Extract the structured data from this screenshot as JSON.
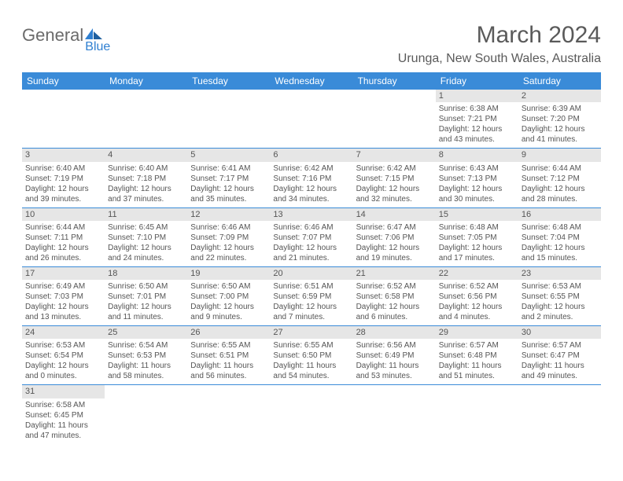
{
  "logo": {
    "text1": "General",
    "text2": "Blue"
  },
  "title": "March 2024",
  "location": "Urunga, New South Wales, Australia",
  "colors": {
    "headerBg": "#3a8bd8",
    "headerText": "#ffffff",
    "dayBarBg": "#e6e6e6",
    "borderColor": "#3a8bd8",
    "bodyText": "#555555",
    "titleText": "#5a5a5a"
  },
  "dayHeaders": [
    "Sunday",
    "Monday",
    "Tuesday",
    "Wednesday",
    "Thursday",
    "Friday",
    "Saturday"
  ],
  "weeks": [
    [
      null,
      null,
      null,
      null,
      null,
      {
        "n": "1",
        "sr": "Sunrise: 6:38 AM",
        "ss": "Sunset: 7:21 PM",
        "d1": "Daylight: 12 hours",
        "d2": "and 43 minutes."
      },
      {
        "n": "2",
        "sr": "Sunrise: 6:39 AM",
        "ss": "Sunset: 7:20 PM",
        "d1": "Daylight: 12 hours",
        "d2": "and 41 minutes."
      }
    ],
    [
      {
        "n": "3",
        "sr": "Sunrise: 6:40 AM",
        "ss": "Sunset: 7:19 PM",
        "d1": "Daylight: 12 hours",
        "d2": "and 39 minutes."
      },
      {
        "n": "4",
        "sr": "Sunrise: 6:40 AM",
        "ss": "Sunset: 7:18 PM",
        "d1": "Daylight: 12 hours",
        "d2": "and 37 minutes."
      },
      {
        "n": "5",
        "sr": "Sunrise: 6:41 AM",
        "ss": "Sunset: 7:17 PM",
        "d1": "Daylight: 12 hours",
        "d2": "and 35 minutes."
      },
      {
        "n": "6",
        "sr": "Sunrise: 6:42 AM",
        "ss": "Sunset: 7:16 PM",
        "d1": "Daylight: 12 hours",
        "d2": "and 34 minutes."
      },
      {
        "n": "7",
        "sr": "Sunrise: 6:42 AM",
        "ss": "Sunset: 7:15 PM",
        "d1": "Daylight: 12 hours",
        "d2": "and 32 minutes."
      },
      {
        "n": "8",
        "sr": "Sunrise: 6:43 AM",
        "ss": "Sunset: 7:13 PM",
        "d1": "Daylight: 12 hours",
        "d2": "and 30 minutes."
      },
      {
        "n": "9",
        "sr": "Sunrise: 6:44 AM",
        "ss": "Sunset: 7:12 PM",
        "d1": "Daylight: 12 hours",
        "d2": "and 28 minutes."
      }
    ],
    [
      {
        "n": "10",
        "sr": "Sunrise: 6:44 AM",
        "ss": "Sunset: 7:11 PM",
        "d1": "Daylight: 12 hours",
        "d2": "and 26 minutes."
      },
      {
        "n": "11",
        "sr": "Sunrise: 6:45 AM",
        "ss": "Sunset: 7:10 PM",
        "d1": "Daylight: 12 hours",
        "d2": "and 24 minutes."
      },
      {
        "n": "12",
        "sr": "Sunrise: 6:46 AM",
        "ss": "Sunset: 7:09 PM",
        "d1": "Daylight: 12 hours",
        "d2": "and 22 minutes."
      },
      {
        "n": "13",
        "sr": "Sunrise: 6:46 AM",
        "ss": "Sunset: 7:07 PM",
        "d1": "Daylight: 12 hours",
        "d2": "and 21 minutes."
      },
      {
        "n": "14",
        "sr": "Sunrise: 6:47 AM",
        "ss": "Sunset: 7:06 PM",
        "d1": "Daylight: 12 hours",
        "d2": "and 19 minutes."
      },
      {
        "n": "15",
        "sr": "Sunrise: 6:48 AM",
        "ss": "Sunset: 7:05 PM",
        "d1": "Daylight: 12 hours",
        "d2": "and 17 minutes."
      },
      {
        "n": "16",
        "sr": "Sunrise: 6:48 AM",
        "ss": "Sunset: 7:04 PM",
        "d1": "Daylight: 12 hours",
        "d2": "and 15 minutes."
      }
    ],
    [
      {
        "n": "17",
        "sr": "Sunrise: 6:49 AM",
        "ss": "Sunset: 7:03 PM",
        "d1": "Daylight: 12 hours",
        "d2": "and 13 minutes."
      },
      {
        "n": "18",
        "sr": "Sunrise: 6:50 AM",
        "ss": "Sunset: 7:01 PM",
        "d1": "Daylight: 12 hours",
        "d2": "and 11 minutes."
      },
      {
        "n": "19",
        "sr": "Sunrise: 6:50 AM",
        "ss": "Sunset: 7:00 PM",
        "d1": "Daylight: 12 hours",
        "d2": "and 9 minutes."
      },
      {
        "n": "20",
        "sr": "Sunrise: 6:51 AM",
        "ss": "Sunset: 6:59 PM",
        "d1": "Daylight: 12 hours",
        "d2": "and 7 minutes."
      },
      {
        "n": "21",
        "sr": "Sunrise: 6:52 AM",
        "ss": "Sunset: 6:58 PM",
        "d1": "Daylight: 12 hours",
        "d2": "and 6 minutes."
      },
      {
        "n": "22",
        "sr": "Sunrise: 6:52 AM",
        "ss": "Sunset: 6:56 PM",
        "d1": "Daylight: 12 hours",
        "d2": "and 4 minutes."
      },
      {
        "n": "23",
        "sr": "Sunrise: 6:53 AM",
        "ss": "Sunset: 6:55 PM",
        "d1": "Daylight: 12 hours",
        "d2": "and 2 minutes."
      }
    ],
    [
      {
        "n": "24",
        "sr": "Sunrise: 6:53 AM",
        "ss": "Sunset: 6:54 PM",
        "d1": "Daylight: 12 hours",
        "d2": "and 0 minutes."
      },
      {
        "n": "25",
        "sr": "Sunrise: 6:54 AM",
        "ss": "Sunset: 6:53 PM",
        "d1": "Daylight: 11 hours",
        "d2": "and 58 minutes."
      },
      {
        "n": "26",
        "sr": "Sunrise: 6:55 AM",
        "ss": "Sunset: 6:51 PM",
        "d1": "Daylight: 11 hours",
        "d2": "and 56 minutes."
      },
      {
        "n": "27",
        "sr": "Sunrise: 6:55 AM",
        "ss": "Sunset: 6:50 PM",
        "d1": "Daylight: 11 hours",
        "d2": "and 54 minutes."
      },
      {
        "n": "28",
        "sr": "Sunrise: 6:56 AM",
        "ss": "Sunset: 6:49 PM",
        "d1": "Daylight: 11 hours",
        "d2": "and 53 minutes."
      },
      {
        "n": "29",
        "sr": "Sunrise: 6:57 AM",
        "ss": "Sunset: 6:48 PM",
        "d1": "Daylight: 11 hours",
        "d2": "and 51 minutes."
      },
      {
        "n": "30",
        "sr": "Sunrise: 6:57 AM",
        "ss": "Sunset: 6:47 PM",
        "d1": "Daylight: 11 hours",
        "d2": "and 49 minutes."
      }
    ],
    [
      {
        "n": "31",
        "sr": "Sunrise: 6:58 AM",
        "ss": "Sunset: 6:45 PM",
        "d1": "Daylight: 11 hours",
        "d2": "and 47 minutes."
      },
      null,
      null,
      null,
      null,
      null,
      null
    ]
  ]
}
